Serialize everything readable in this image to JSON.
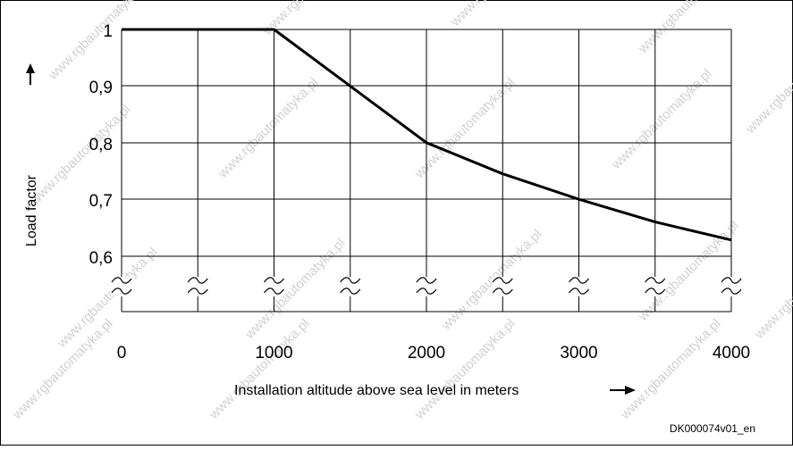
{
  "chart_data": {
    "type": "line",
    "xlabel": "Installation altitude above sea level in meters",
    "ylabel": "Load factor",
    "x_ticks": [
      "0",
      "1000",
      "2000",
      "3000",
      "4000"
    ],
    "y_ticks": [
      "1",
      "0,9",
      "0,8",
      "0,7",
      "0,6"
    ],
    "xlim": [
      0,
      4000
    ],
    "ylim": [
      0.55,
      1.0
    ],
    "axis_break": "between 0,6 and the x axis",
    "grid": true,
    "series": [
      {
        "x": [
          0,
          1000,
          1500,
          2000,
          2500,
          3000,
          3500,
          4000
        ],
        "y": [
          1.0,
          1.0,
          0.9,
          0.8,
          0.745,
          0.7,
          0.66,
          0.628
        ]
      }
    ]
  },
  "document_code": "DK000074v01_en",
  "watermark": "www.rgbautomatyka.pl",
  "colors": {
    "line": "#000000",
    "grid": "#000000",
    "background": "#ffffff",
    "watermark": "#d0d0d0"
  }
}
